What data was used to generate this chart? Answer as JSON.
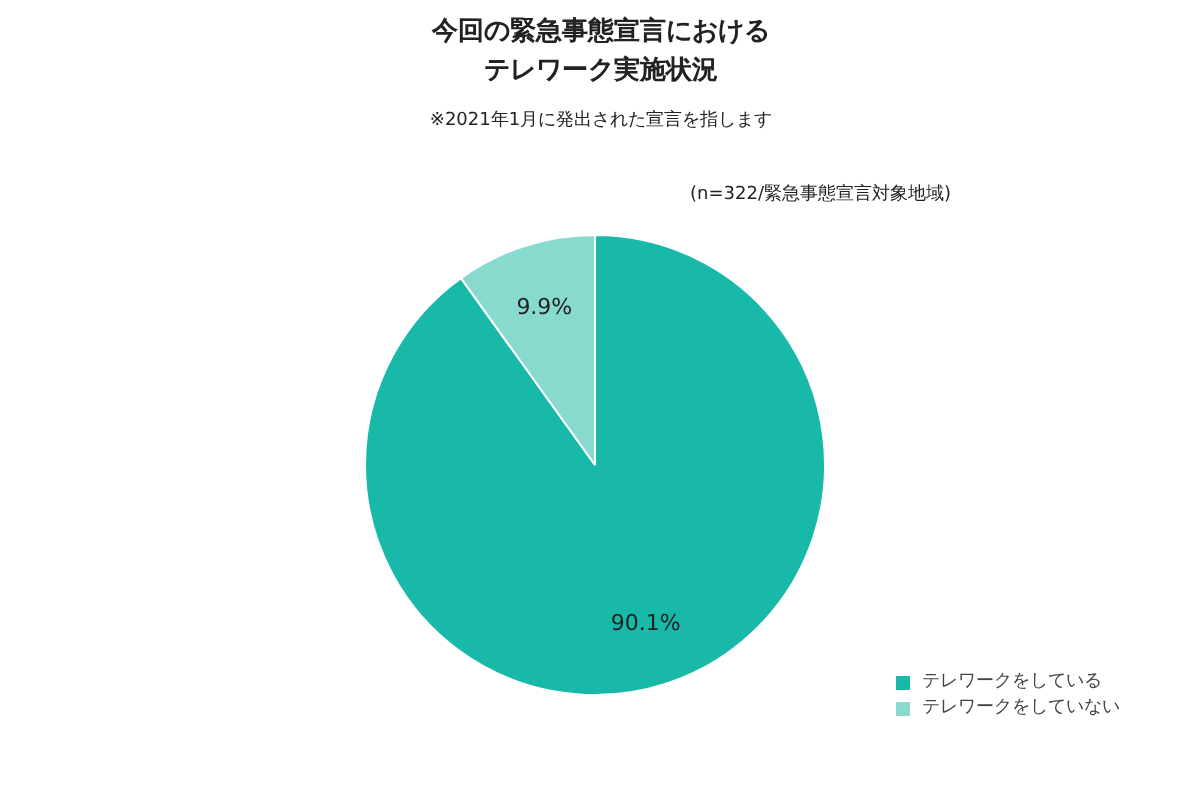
{
  "chart_data": {
    "type": "pie",
    "title": "今回の緊急事態宣言におけるテレワーク実施状況",
    "subtitle": "※2021年1月に発出された宣言を指します",
    "annotations": [
      "(n=322/緊急事態宣言対象地域)"
    ],
    "categories": [
      "テレワークをしている",
      "テレワークをしていない"
    ],
    "values": [
      90.1,
      9.9
    ],
    "colors": [
      "#19b9a9",
      "#88dacf"
    ],
    "value_labels": [
      "90.1%",
      "9.9%"
    ],
    "legend": "bottom right"
  }
}
